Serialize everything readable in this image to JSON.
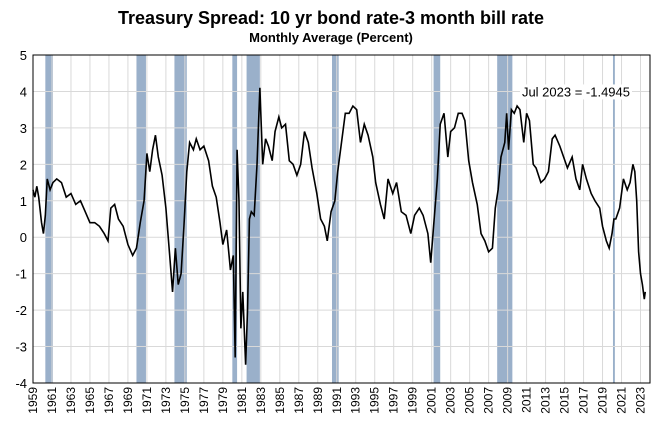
{
  "chart_data": {
    "type": "line",
    "title": "Treasury Spread: 10 yr bond rate-3 month bill rate",
    "subtitle": "Monthly Average (Percent)",
    "annotation": "Jul 2023 = -1.4945",
    "color": "#000000",
    "recession_color": "#8fa7c4",
    "grid": true,
    "xlim": [
      1959,
      2024
    ],
    "ylim": [
      -4,
      5
    ],
    "yticks": [
      -4,
      -3,
      -2,
      -1,
      0,
      1,
      2,
      3,
      4,
      5
    ],
    "xticks": [
      1959,
      1961,
      1963,
      1965,
      1967,
      1969,
      1971,
      1973,
      1975,
      1977,
      1979,
      1981,
      1983,
      1985,
      1987,
      1989,
      1991,
      1993,
      1995,
      1997,
      1999,
      2001,
      2003,
      2005,
      2007,
      2009,
      2011,
      2013,
      2015,
      2017,
      2019,
      2021,
      2023
    ],
    "recessions": [
      [
        1960.3,
        1961.1
      ],
      [
        1969.9,
        1970.9
      ],
      [
        1973.9,
        1975.2
      ],
      [
        1980.0,
        1980.5
      ],
      [
        1981.5,
        1982.9
      ],
      [
        1990.5,
        1991.2
      ],
      [
        2001.2,
        2001.9
      ],
      [
        2007.9,
        2009.5
      ],
      [
        2020.1,
        2020.3
      ]
    ],
    "x": [
      1959.0,
      1959.2,
      1959.4,
      1959.6,
      1959.9,
      1960.1,
      1960.3,
      1960.5,
      1960.8,
      1961.1,
      1961.5,
      1962.0,
      1962.5,
      1963.0,
      1963.5,
      1964.0,
      1964.5,
      1965.0,
      1965.5,
      1966.0,
      1966.5,
      1966.9,
      1967.2,
      1967.6,
      1968.0,
      1968.5,
      1969.0,
      1969.5,
      1969.9,
      1970.3,
      1970.7,
      1971.0,
      1971.3,
      1971.6,
      1971.9,
      1972.2,
      1972.6,
      1973.0,
      1973.4,
      1973.7,
      1974.0,
      1974.3,
      1974.6,
      1974.9,
      1975.2,
      1975.5,
      1975.9,
      1976.2,
      1976.6,
      1977.0,
      1977.5,
      1977.9,
      1978.3,
      1978.7,
      1979.0,
      1979.4,
      1979.8,
      1980.1,
      1980.3,
      1980.5,
      1980.7,
      1980.9,
      1981.1,
      1981.4,
      1981.6,
      1981.8,
      1982.0,
      1982.3,
      1982.6,
      1982.9,
      1983.2,
      1983.5,
      1983.8,
      1984.2,
      1984.5,
      1984.9,
      1985.2,
      1985.6,
      1986.0,
      1986.4,
      1986.8,
      1987.2,
      1987.6,
      1988.0,
      1988.4,
      1988.9,
      1989.3,
      1989.7,
      1990.0,
      1990.4,
      1990.8,
      1991.1,
      1991.5,
      1991.9,
      1992.3,
      1992.7,
      1993.1,
      1993.5,
      1993.9,
      1994.3,
      1994.8,
      1995.1,
      1995.6,
      1996.0,
      1996.4,
      1996.9,
      1997.3,
      1997.8,
      1998.3,
      1998.8,
      1999.2,
      1999.7,
      2000.1,
      2000.6,
      2000.9,
      2001.2,
      2001.6,
      2001.9,
      2002.3,
      2002.7,
      2003.0,
      2003.4,
      2003.8,
      2004.2,
      2004.5,
      2004.9,
      2005.3,
      2005.8,
      2006.2,
      2006.6,
      2007.0,
      2007.4,
      2007.7,
      2008.0,
      2008.3,
      2008.7,
      2008.9,
      2009.1,
      2009.4,
      2009.7,
      2010.0,
      2010.3,
      2010.7,
      2011.0,
      2011.3,
      2011.7,
      2012.0,
      2012.5,
      2012.9,
      2013.3,
      2013.7,
      2014.0,
      2014.5,
      2014.9,
      2015.3,
      2015.8,
      2016.2,
      2016.6,
      2016.9,
      2017.3,
      2017.8,
      2018.2,
      2018.7,
      2019.0,
      2019.4,
      2019.7,
      2020.0,
      2020.2,
      2020.4,
      2020.8,
      2021.2,
      2021.6,
      2021.9,
      2022.2,
      2022.4,
      2022.6,
      2022.8,
      2023.0,
      2023.2,
      2023.4,
      2023.5
    ],
    "values": [
      1.3,
      1.1,
      1.4,
      1.1,
      0.4,
      0.1,
      0.6,
      1.6,
      1.3,
      1.5,
      1.6,
      1.5,
      1.1,
      1.2,
      0.9,
      1.0,
      0.7,
      0.4,
      0.4,
      0.3,
      0.1,
      -0.1,
      0.8,
      0.9,
      0.5,
      0.3,
      -0.2,
      -0.5,
      -0.3,
      0.4,
      1.0,
      2.3,
      1.8,
      2.4,
      2.8,
      2.2,
      1.7,
      0.8,
      -0.5,
      -1.5,
      -0.3,
      -1.3,
      -1.0,
      0.3,
      1.8,
      2.6,
      2.4,
      2.7,
      2.4,
      2.5,
      2.1,
      1.4,
      1.1,
      0.4,
      -0.2,
      0.2,
      -0.9,
      -0.5,
      -3.3,
      2.4,
      1.0,
      -2.5,
      -1.5,
      -3.5,
      -2.0,
      0.5,
      0.7,
      0.6,
      2.0,
      4.1,
      2.0,
      2.7,
      2.5,
      2.1,
      2.9,
      3.3,
      3.0,
      3.1,
      2.1,
      2.0,
      1.7,
      2.0,
      2.9,
      2.6,
      1.9,
      1.2,
      0.5,
      0.3,
      -0.1,
      0.7,
      1.0,
      1.8,
      2.6,
      3.4,
      3.4,
      3.6,
      3.5,
      2.6,
      3.1,
      2.8,
      2.2,
      1.5,
      0.9,
      0.5,
      1.6,
      1.2,
      1.5,
      0.7,
      0.6,
      0.1,
      0.6,
      0.8,
      0.6,
      0.1,
      -0.7,
      0.3,
      1.6,
      3.1,
      3.4,
      2.2,
      2.9,
      3.0,
      3.4,
      3.4,
      3.2,
      2.1,
      1.5,
      0.9,
      0.1,
      -0.1,
      -0.4,
      -0.3,
      0.8,
      1.3,
      2.2,
      2.6,
      3.4,
      2.4,
      3.5,
      3.4,
      3.6,
      3.5,
      2.6,
      3.4,
      3.2,
      2.0,
      1.9,
      1.5,
      1.6,
      1.8,
      2.7,
      2.8,
      2.5,
      2.2,
      1.9,
      2.2,
      1.6,
      1.3,
      2.0,
      1.6,
      1.2,
      1.0,
      0.8,
      0.3,
      -0.1,
      -0.3,
      0.1,
      0.5,
      0.5,
      0.8,
      1.6,
      1.3,
      1.5,
      2.0,
      1.8,
      1.0,
      -0.4,
      -1.0,
      -1.3,
      -1.7,
      -1.5
    ]
  }
}
